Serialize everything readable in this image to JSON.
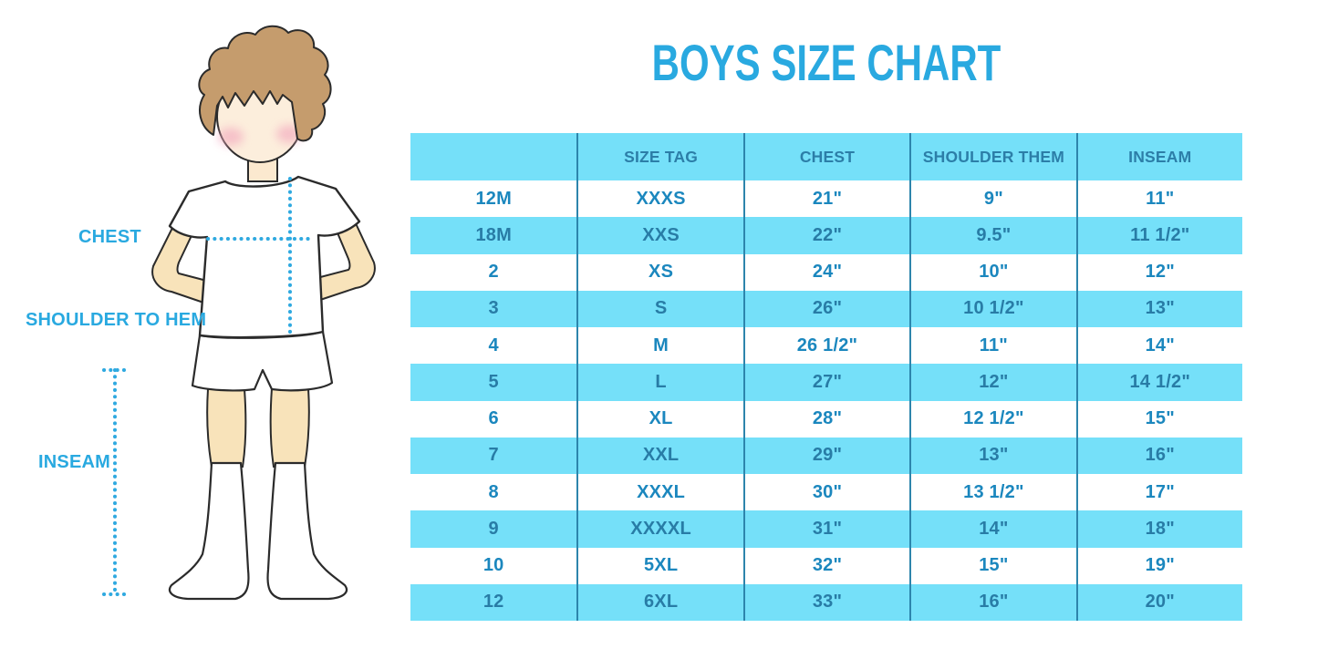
{
  "title": "BOYS SIZE CHART",
  "figure_labels": {
    "chest": "CHEST",
    "shoulder_to_hem": "SHOULDER TO HEM",
    "inseam": "INSEAM"
  },
  "colors": {
    "title_blue": "#29A9E0",
    "band_cyan": "#75E0F9",
    "divider_teal": "#2D85AC",
    "table_text_on_white": "#1B87BE",
    "table_text_on_cyan": "#287CA6",
    "header_text": "#2C7EA8",
    "dotted_line_blue": "#2FA9E0",
    "hair_brown": "#C59C6D",
    "skin_face": "#FCEEDC",
    "skin_limbs": "#F8E3BA",
    "blush_pink": "#F3A9BE"
  },
  "chart_data": {
    "type": "table",
    "title": "BOYS SIZE CHART",
    "columns": [
      "",
      "SIZE TAG",
      "CHEST",
      "SHOULDER THEM",
      "INSEAM"
    ],
    "rows": [
      [
        "12M",
        "XXXS",
        "21\"",
        "9\"",
        "11\""
      ],
      [
        "18M",
        "XXS",
        "22\"",
        "9.5\"",
        "11 1/2\""
      ],
      [
        "2",
        "XS",
        "24\"",
        "10\"",
        "12\""
      ],
      [
        "3",
        "S",
        "26\"",
        "10 1/2\"",
        "13\""
      ],
      [
        "4",
        "M",
        "26 1/2\"",
        "11\"",
        "14\""
      ],
      [
        "5",
        "L",
        "27\"",
        "12\"",
        "14 1/2\""
      ],
      [
        "6",
        "XL",
        "28\"",
        "12 1/2\"",
        "15\""
      ],
      [
        "7",
        "XXL",
        "29\"",
        "13\"",
        "16\""
      ],
      [
        "8",
        "XXXL",
        "30\"",
        "13 1/2\"",
        "17\""
      ],
      [
        "9",
        "XXXXL",
        "31\"",
        "14\"",
        "18\""
      ],
      [
        "10",
        "5XL",
        "32\"",
        "15\"",
        "19\""
      ],
      [
        "12",
        "6XL",
        "33\"",
        "16\"",
        "20\""
      ]
    ],
    "layout": {
      "striped": true,
      "stripe_colors": [
        "#FFFFFF",
        "#75E0F9"
      ],
      "header_background": "#75E0F9",
      "grid": "vertical-dividers-only",
      "legend": "none"
    }
  }
}
